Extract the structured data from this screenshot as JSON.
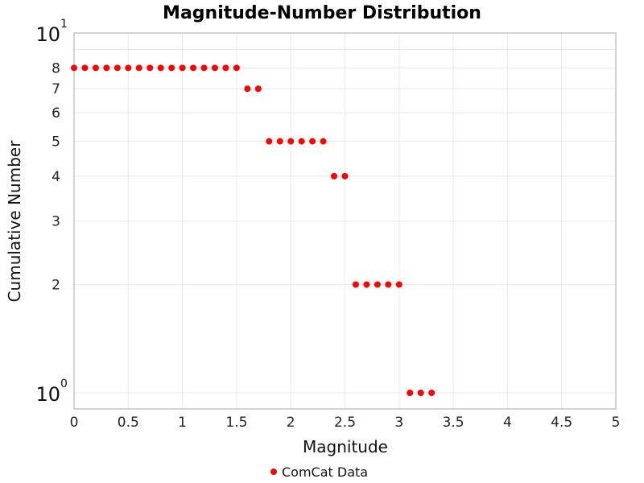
{
  "chart_data": {
    "type": "scatter",
    "title": "Magnitude-Number Distribution",
    "xlabel": "Magnitude",
    "ylabel": "Cumulative Number",
    "xlim": [
      0,
      5
    ],
    "ylim": [
      0.9,
      10
    ],
    "yscale": "log",
    "grid": true,
    "legend_position": "bottom",
    "x_ticks": [
      "0",
      "0.5",
      "1",
      "1.5",
      "2",
      "2.5",
      "3",
      "3.5",
      "4",
      "4.5",
      "5"
    ],
    "y_ticks": [
      {
        "value": 1,
        "label": "10",
        "exp": "0"
      },
      {
        "value": 2,
        "label": "2"
      },
      {
        "value": 3,
        "label": "3"
      },
      {
        "value": 4,
        "label": "4"
      },
      {
        "value": 5,
        "label": "5"
      },
      {
        "value": 6,
        "label": "6"
      },
      {
        "value": 7,
        "label": "7"
      },
      {
        "value": 8,
        "label": "8"
      },
      {
        "value": 10,
        "label": "10",
        "exp": "1"
      }
    ],
    "series": [
      {
        "name": "ComCat Data",
        "color": "#ff0000",
        "x": [
          0,
          0.1,
          0.2,
          0.3,
          0.4,
          0.5,
          0.6,
          0.7,
          0.8,
          0.9,
          1.0,
          1.1,
          1.2,
          1.3,
          1.4,
          1.5,
          1.6,
          1.7,
          1.8,
          1.9,
          2.0,
          2.1,
          2.2,
          2.3,
          2.4,
          2.5,
          2.6,
          2.7,
          2.8,
          2.9,
          3.0,
          3.1,
          3.2,
          3.3
        ],
        "y": [
          8,
          8,
          8,
          8,
          8,
          8,
          8,
          8,
          8,
          8,
          8,
          8,
          8,
          8,
          8,
          8,
          7,
          7,
          5,
          5,
          5,
          5,
          5,
          5,
          4,
          4,
          2,
          2,
          2,
          2,
          2,
          1,
          1,
          1
        ]
      }
    ]
  }
}
